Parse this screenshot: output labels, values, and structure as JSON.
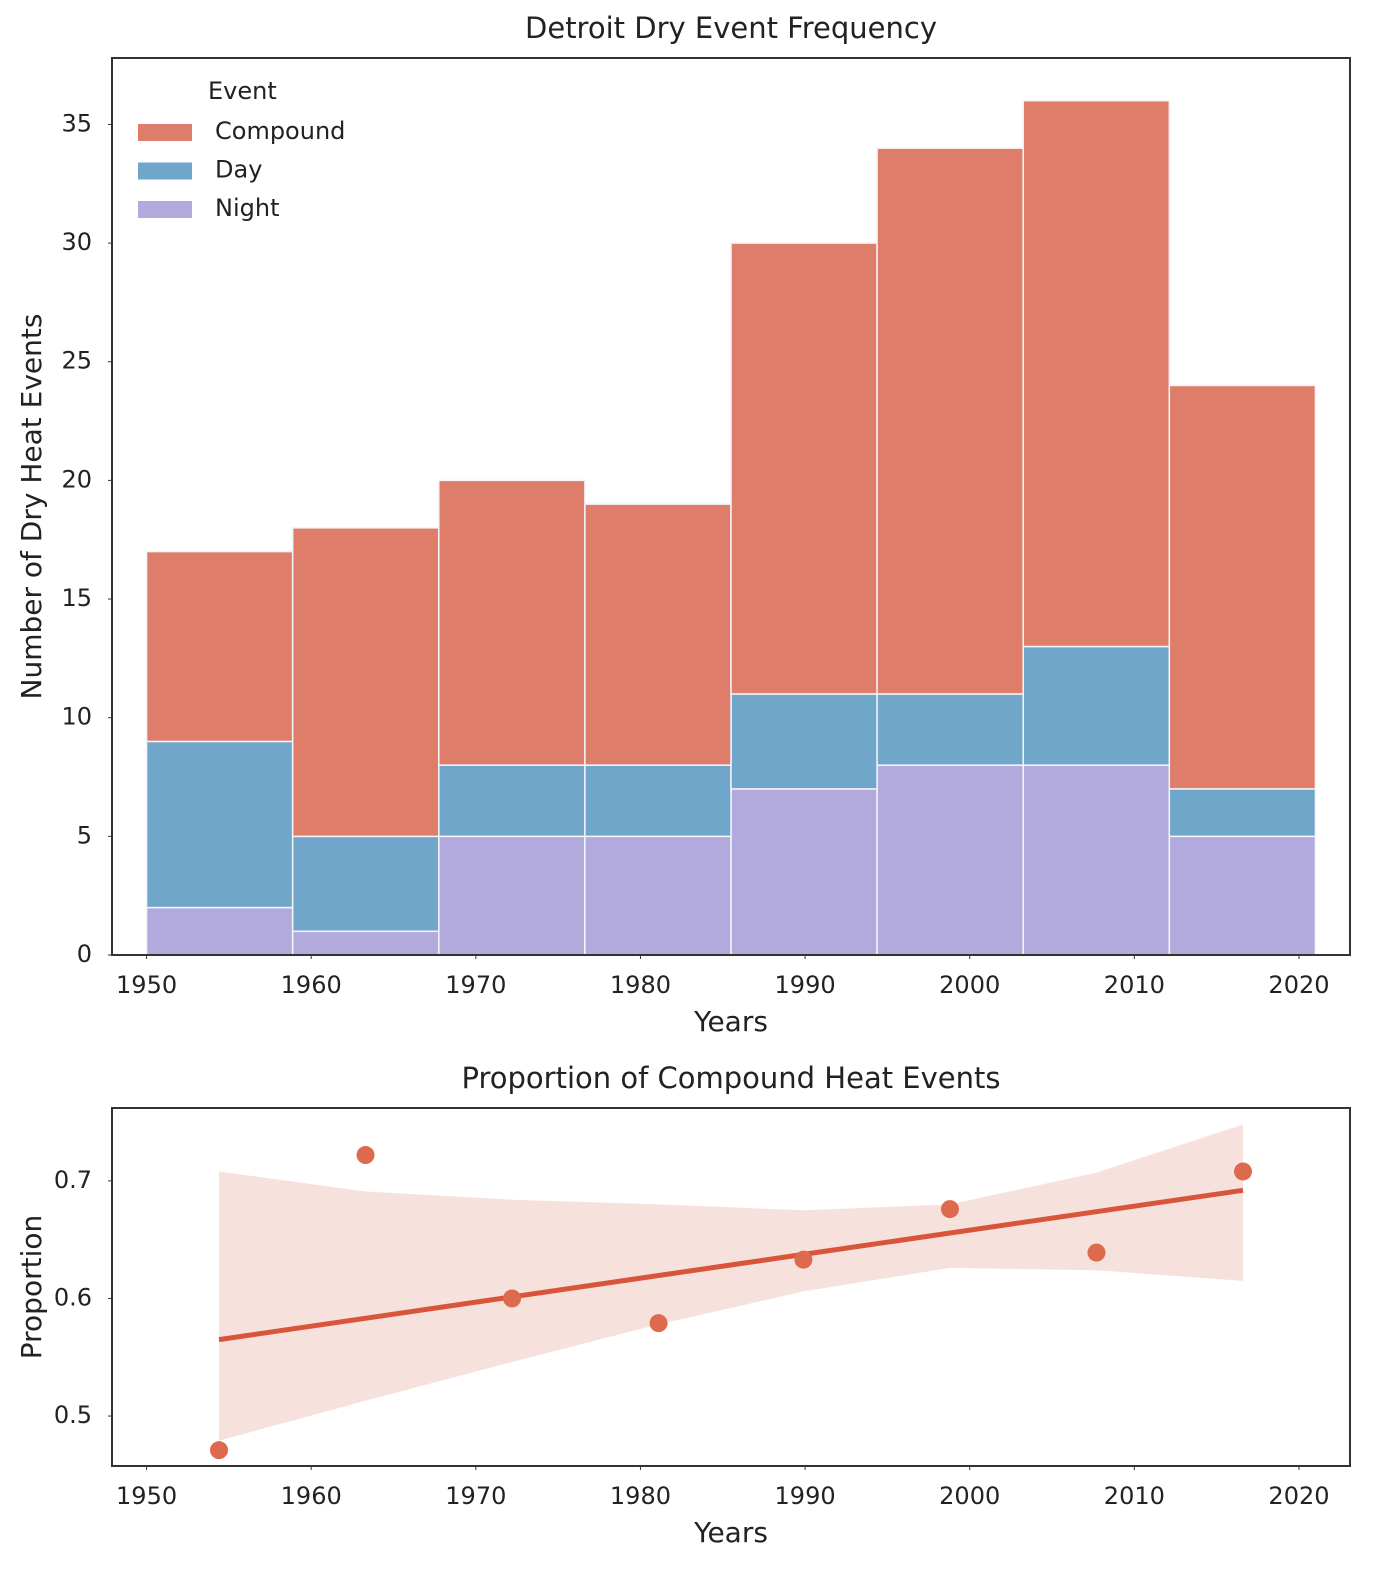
{
  "chart_data": [
    {
      "type": "histogram",
      "title": "Detroit Dry Event Frequency",
      "x_label": "Years",
      "y_label": "Number of Dry Heat Events",
      "bins": [
        1950,
        1958.875,
        1967.75,
        1976.625,
        1985.5,
        1994.375,
        2003.25,
        2012.125,
        2021
      ],
      "stacked": true,
      "legend_title": "Event",
      "legend": "upper left",
      "series": [
        {
          "name": "Compound",
          "color": "#de7d69",
          "values": [
            8,
            13,
            12,
            11,
            19,
            23,
            23,
            17
          ]
        },
        {
          "name": "Day",
          "color": "#71a6cb",
          "values": [
            7,
            4,
            3,
            3,
            4,
            3,
            5,
            2
          ]
        },
        {
          "name": "Night",
          "color": "#b2aadd",
          "values": [
            2,
            1,
            5,
            5,
            7,
            8,
            8,
            5
          ]
        }
      ],
      "xlim": [
        1947.9,
        2023.1
      ],
      "xticks": [
        1950,
        1960,
        1970,
        1980,
        1990,
        2000,
        2010,
        2020
      ],
      "ylim": [
        0,
        37.8
      ],
      "yticks": [
        0,
        5,
        10,
        15,
        20,
        25,
        30,
        35
      ]
    },
    {
      "type": "scatter",
      "title": "Proportion of Compound Heat Events",
      "x_label": "Years",
      "y_label": "Proportion",
      "color": "#dd6a4f",
      "x": [
        1954.4,
        1963.3,
        1972.2,
        1981.1,
        1989.9,
        1998.8,
        2007.7,
        2016.6
      ],
      "values": [
        0.471,
        0.722,
        0.6,
        0.579,
        0.633,
        0.676,
        0.639,
        0.708
      ],
      "trend": {
        "x": [
          1954.4,
          2016.6
        ],
        "values": [
          0.565,
          0.692
        ],
        "color": "#d9553a"
      },
      "ci": {
        "x": [
          1954.4,
          1963.3,
          1972.2,
          1981.1,
          1989.9,
          1998.8,
          2007.7,
          2016.6
        ],
        "upper": [
          0.708,
          0.691,
          0.684,
          0.68,
          0.675,
          0.68,
          0.707,
          0.748
        ],
        "lower": [
          0.479,
          0.513,
          0.546,
          0.578,
          0.606,
          0.626,
          0.624,
          0.615
        ],
        "color": "#f6e1dc"
      },
      "xlim": [
        1947.9,
        2023.1
      ],
      "xticks": [
        1950,
        1960,
        1970,
        1980,
        1990,
        2000,
        2010,
        2020
      ],
      "ylim": [
        0.4575,
        0.762
      ],
      "yticks": [
        0.5,
        0.6,
        0.7
      ]
    }
  ]
}
